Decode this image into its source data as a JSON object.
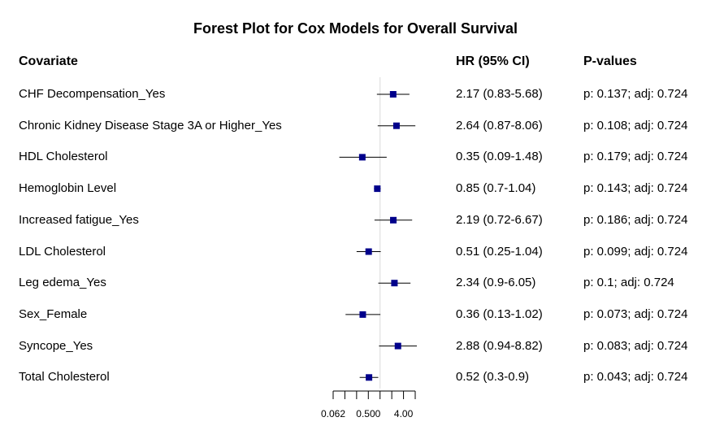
{
  "chart_data": {
    "type": "forest",
    "title": "Forest Plot for Cox Models for Overall Survival",
    "columns": {
      "covariate": "Covariate",
      "hr": "HR (95% CI)",
      "pvalues": "P-values"
    },
    "x_scale": "log2",
    "reference_line": 1,
    "x_ticks": [
      0.0625,
      0.125,
      0.25,
      0.5,
      1,
      2,
      4,
      8
    ],
    "x_tick_labels": [
      {
        "value": 0.0625,
        "label": "0.062"
      },
      {
        "value": 0.5,
        "label": "0.500"
      },
      {
        "value": 4,
        "label": "4.00"
      }
    ],
    "point_color": "#00008B",
    "rows": [
      {
        "label": "CHF Decompensation_Yes",
        "hr": 2.17,
        "lower": 0.83,
        "upper": 5.68,
        "hr_text": "2.17 (0.83-5.68)",
        "p_text": "p: 0.137; adj: 0.724"
      },
      {
        "label": "Chronic Kidney Disease Stage 3A or Higher_Yes",
        "hr": 2.64,
        "lower": 0.87,
        "upper": 8.06,
        "hr_text": "2.64 (0.87-8.06)",
        "p_text": "p: 0.108; adj: 0.724"
      },
      {
        "label": "HDL Cholesterol",
        "hr": 0.35,
        "lower": 0.09,
        "upper": 1.48,
        "hr_text": "0.35 (0.09-1.48)",
        "p_text": "p: 0.179; adj: 0.724"
      },
      {
        "label": "Hemoglobin Level",
        "hr": 0.85,
        "lower": 0.7,
        "upper": 1.04,
        "hr_text": "0.85 (0.7-1.04)",
        "p_text": "p: 0.143; adj: 0.724"
      },
      {
        "label": "Increased fatigue_Yes",
        "hr": 2.19,
        "lower": 0.72,
        "upper": 6.67,
        "hr_text": "2.19 (0.72-6.67)",
        "p_text": "p: 0.186; adj: 0.724"
      },
      {
        "label": "LDL Cholesterol",
        "hr": 0.51,
        "lower": 0.25,
        "upper": 1.04,
        "hr_text": "0.51 (0.25-1.04)",
        "p_text": "p: 0.099; adj: 0.724"
      },
      {
        "label": "Leg edema_Yes",
        "hr": 2.34,
        "lower": 0.9,
        "upper": 6.05,
        "hr_text": "2.34 (0.9-6.05)",
        "p_text": "p: 0.1; adj: 0.724"
      },
      {
        "label": "Sex_Female",
        "hr": 0.36,
        "lower": 0.13,
        "upper": 1.02,
        "hr_text": "0.36 (0.13-1.02)",
        "p_text": "p: 0.073; adj: 0.724"
      },
      {
        "label": "Syncope_Yes",
        "hr": 2.88,
        "lower": 0.94,
        "upper": 8.82,
        "hr_text": "2.88 (0.94-8.82)",
        "p_text": "p: 0.083; adj: 0.724"
      },
      {
        "label": "Total Cholesterol",
        "hr": 0.52,
        "lower": 0.3,
        "upper": 0.9,
        "hr_text": "0.52 (0.3-0.9)",
        "p_text": "p: 0.043; adj: 0.724"
      }
    ]
  }
}
